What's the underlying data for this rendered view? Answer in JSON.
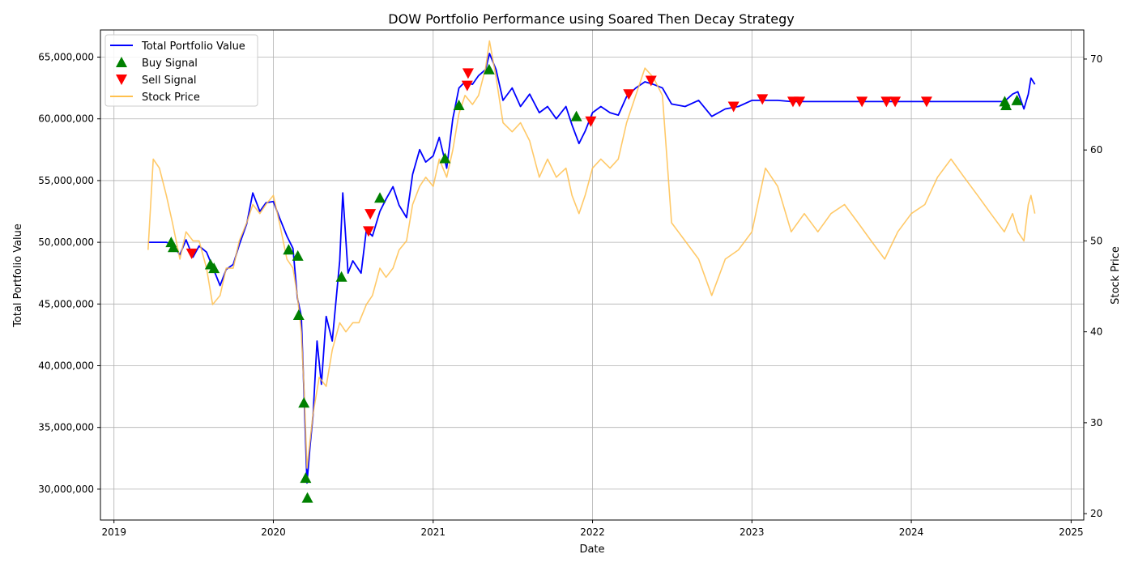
{
  "chart_data": {
    "type": "line",
    "title": "DOW Portfolio Performance using Soared Then Decay Strategy",
    "xlabel": "Date",
    "ylabel": "Total Portfolio Value",
    "ylabel_right": "Stock Price",
    "xlim": [
      "2018-12-01",
      "2025-01-30"
    ],
    "ylim": [
      27500000,
      67200000
    ],
    "ylim_right": [
      19.3,
      73.2
    ],
    "grid": true,
    "legend_position": "top-left",
    "x_ticks": [
      "2019",
      "2020",
      "2021",
      "2022",
      "2023",
      "2024",
      "2025"
    ],
    "y_ticks": [
      "30,000,000",
      "35,000,000",
      "40,000,000",
      "45,000,000",
      "50,000,000",
      "55,000,000",
      "60,000,000",
      "65,000,000"
    ],
    "y_ticks_right": [
      "20",
      "30",
      "40",
      "50",
      "60",
      "70"
    ],
    "legend": {
      "portfolio": "Total Portfolio Value",
      "buy": "Buy Signal",
      "sell": "Sell Signal",
      "price": "Stock Price"
    },
    "colors": {
      "portfolio": "#0000ff",
      "buy": "#008000",
      "sell": "#ff0000",
      "price": "#ffc04d"
    },
    "series": [
      {
        "name": "Total Portfolio Value",
        "axis": "left",
        "points": [
          [
            "2019-03-20",
            50000000
          ],
          [
            "2019-05-01",
            50000000
          ],
          [
            "2019-05-15",
            49800000
          ],
          [
            "2019-06-01",
            49000000
          ],
          [
            "2019-06-15",
            50200000
          ],
          [
            "2019-07-01",
            48800000
          ],
          [
            "2019-07-15",
            49700000
          ],
          [
            "2019-08-01",
            49200000
          ],
          [
            "2019-08-15",
            48000000
          ],
          [
            "2019-09-01",
            46500000
          ],
          [
            "2019-09-15",
            47800000
          ],
          [
            "2019-10-01",
            48200000
          ],
          [
            "2019-10-15",
            49800000
          ],
          [
            "2019-11-01",
            51500000
          ],
          [
            "2019-11-15",
            54000000
          ],
          [
            "2019-12-01",
            52500000
          ],
          [
            "2019-12-15",
            53200000
          ],
          [
            "2020-01-01",
            53300000
          ],
          [
            "2020-01-15",
            52000000
          ],
          [
            "2020-02-01",
            50500000
          ],
          [
            "2020-02-15",
            49500000
          ],
          [
            "2020-02-25",
            45500000
          ],
          [
            "2020-03-05",
            44000000
          ],
          [
            "2020-03-12",
            37000000
          ],
          [
            "2020-03-18",
            30500000
          ],
          [
            "2020-03-25",
            33500000
          ],
          [
            "2020-04-01",
            36000000
          ],
          [
            "2020-04-10",
            42000000
          ],
          [
            "2020-04-20",
            38500000
          ],
          [
            "2020-05-01",
            44000000
          ],
          [
            "2020-05-15",
            42000000
          ],
          [
            "2020-06-01",
            48500000
          ],
          [
            "2020-06-08",
            54000000
          ],
          [
            "2020-06-20",
            47500000
          ],
          [
            "2020-07-01",
            48500000
          ],
          [
            "2020-07-20",
            47500000
          ],
          [
            "2020-08-01",
            51000000
          ],
          [
            "2020-08-15",
            50500000
          ],
          [
            "2020-09-01",
            52500000
          ],
          [
            "2020-09-15",
            53500000
          ],
          [
            "2020-10-01",
            54500000
          ],
          [
            "2020-10-15",
            53000000
          ],
          [
            "2020-11-01",
            52000000
          ],
          [
            "2020-11-15",
            55500000
          ],
          [
            "2020-12-01",
            57500000
          ],
          [
            "2020-12-15",
            56500000
          ],
          [
            "2021-01-01",
            57000000
          ],
          [
            "2021-01-15",
            58500000
          ],
          [
            "2021-02-01",
            56000000
          ],
          [
            "2021-02-15",
            60000000
          ],
          [
            "2021-03-01",
            62500000
          ],
          [
            "2021-03-15",
            63000000
          ],
          [
            "2021-04-01",
            62800000
          ],
          [
            "2021-04-15",
            63500000
          ],
          [
            "2021-05-01",
            64000000
          ],
          [
            "2021-05-10",
            65300000
          ],
          [
            "2021-05-25",
            64000000
          ],
          [
            "2021-06-10",
            61500000
          ],
          [
            "2021-07-01",
            62500000
          ],
          [
            "2021-07-20",
            61000000
          ],
          [
            "2021-08-10",
            62000000
          ],
          [
            "2021-09-01",
            60500000
          ],
          [
            "2021-09-20",
            61000000
          ],
          [
            "2021-10-10",
            60000000
          ],
          [
            "2021-11-01",
            61000000
          ],
          [
            "2021-11-15",
            59500000
          ],
          [
            "2021-12-01",
            58000000
          ],
          [
            "2021-12-15",
            59000000
          ],
          [
            "2022-01-01",
            60500000
          ],
          [
            "2022-01-20",
            61000000
          ],
          [
            "2022-02-10",
            60500000
          ],
          [
            "2022-03-01",
            60300000
          ],
          [
            "2022-03-20",
            61800000
          ],
          [
            "2022-04-10",
            62500000
          ],
          [
            "2022-05-01",
            63000000
          ],
          [
            "2022-05-20",
            62800000
          ],
          [
            "2022-06-10",
            62500000
          ],
          [
            "2022-07-01",
            61200000
          ],
          [
            "2022-08-01",
            61000000
          ],
          [
            "2022-09-01",
            61500000
          ],
          [
            "2022-10-01",
            60200000
          ],
          [
            "2022-11-01",
            60800000
          ],
          [
            "2022-12-01",
            61000000
          ],
          [
            "2023-01-01",
            61500000
          ],
          [
            "2023-02-01",
            61500000
          ],
          [
            "2023-03-01",
            61500000
          ],
          [
            "2023-04-01",
            61400000
          ],
          [
            "2023-06-01",
            61400000
          ],
          [
            "2023-10-01",
            61400000
          ],
          [
            "2024-01-01",
            61400000
          ],
          [
            "2024-04-01",
            61400000
          ],
          [
            "2024-07-01",
            61400000
          ],
          [
            "2024-08-01",
            61400000
          ],
          [
            "2024-08-20",
            62000000
          ],
          [
            "2024-09-01",
            62200000
          ],
          [
            "2024-09-15",
            60800000
          ],
          [
            "2024-09-25",
            62000000
          ],
          [
            "2024-10-01",
            63300000
          ],
          [
            "2024-10-10",
            62800000
          ]
        ]
      },
      {
        "name": "Stock Price",
        "axis": "right",
        "points": [
          [
            "2019-03-20",
            49
          ],
          [
            "2019-04-01",
            59
          ],
          [
            "2019-04-15",
            58
          ],
          [
            "2019-05-01",
            55
          ],
          [
            "2019-05-15",
            52
          ],
          [
            "2019-06-01",
            48
          ],
          [
            "2019-06-15",
            51
          ],
          [
            "2019-07-01",
            50
          ],
          [
            "2019-07-15",
            50
          ],
          [
            "2019-08-01",
            47
          ],
          [
            "2019-08-15",
            43
          ],
          [
            "2019-09-01",
            44
          ],
          [
            "2019-09-15",
            47
          ],
          [
            "2019-10-01",
            47
          ],
          [
            "2019-10-15",
            50
          ],
          [
            "2019-11-01",
            52
          ],
          [
            "2019-11-15",
            54
          ],
          [
            "2019-12-01",
            53
          ],
          [
            "2019-12-15",
            54
          ],
          [
            "2020-01-01",
            55
          ],
          [
            "2020-01-15",
            52
          ],
          [
            "2020-02-01",
            48
          ],
          [
            "2020-02-15",
            47
          ],
          [
            "2020-02-25",
            44
          ],
          [
            "2020-03-05",
            40
          ],
          [
            "2020-03-12",
            33
          ],
          [
            "2020-03-18",
            25
          ],
          [
            "2020-03-25",
            28
          ],
          [
            "2020-04-01",
            31
          ],
          [
            "2020-04-15",
            35
          ],
          [
            "2020-05-01",
            34
          ],
          [
            "2020-05-15",
            38
          ],
          [
            "2020-06-01",
            41
          ],
          [
            "2020-06-15",
            40
          ],
          [
            "2020-07-01",
            41
          ],
          [
            "2020-07-15",
            41
          ],
          [
            "2020-08-01",
            43
          ],
          [
            "2020-08-15",
            44
          ],
          [
            "2020-09-01",
            47
          ],
          [
            "2020-09-15",
            46
          ],
          [
            "2020-10-01",
            47
          ],
          [
            "2020-10-15",
            49
          ],
          [
            "2020-11-01",
            50
          ],
          [
            "2020-11-15",
            54
          ],
          [
            "2020-12-01",
            56
          ],
          [
            "2020-12-15",
            57
          ],
          [
            "2021-01-01",
            56
          ],
          [
            "2021-01-15",
            59
          ],
          [
            "2021-02-01",
            57
          ],
          [
            "2021-02-15",
            60
          ],
          [
            "2021-03-01",
            64
          ],
          [
            "2021-03-15",
            66
          ],
          [
            "2021-04-01",
            65
          ],
          [
            "2021-04-15",
            66
          ],
          [
            "2021-05-01",
            69
          ],
          [
            "2021-05-10",
            72
          ],
          [
            "2021-05-25",
            68
          ],
          [
            "2021-06-10",
            63
          ],
          [
            "2021-07-01",
            62
          ],
          [
            "2021-07-20",
            63
          ],
          [
            "2021-08-10",
            61
          ],
          [
            "2021-09-01",
            57
          ],
          [
            "2021-09-20",
            59
          ],
          [
            "2021-10-10",
            57
          ],
          [
            "2021-11-01",
            58
          ],
          [
            "2021-11-15",
            55
          ],
          [
            "2021-12-01",
            53
          ],
          [
            "2021-12-15",
            55
          ],
          [
            "2022-01-01",
            58
          ],
          [
            "2022-01-20",
            59
          ],
          [
            "2022-02-10",
            58
          ],
          [
            "2022-03-01",
            59
          ],
          [
            "2022-03-20",
            63
          ],
          [
            "2022-04-10",
            66
          ],
          [
            "2022-05-01",
            69
          ],
          [
            "2022-05-20",
            68
          ],
          [
            "2022-06-10",
            66
          ],
          [
            "2022-07-01",
            52
          ],
          [
            "2022-08-01",
            50
          ],
          [
            "2022-09-01",
            48
          ],
          [
            "2022-10-01",
            44
          ],
          [
            "2022-11-01",
            48
          ],
          [
            "2022-12-01",
            49
          ],
          [
            "2023-01-01",
            51
          ],
          [
            "2023-02-01",
            58
          ],
          [
            "2023-03-01",
            56
          ],
          [
            "2023-04-01",
            51
          ],
          [
            "2023-05-01",
            53
          ],
          [
            "2023-06-01",
            51
          ],
          [
            "2023-07-01",
            53
          ],
          [
            "2023-08-01",
            54
          ],
          [
            "2023-09-01",
            52
          ],
          [
            "2023-10-01",
            50
          ],
          [
            "2023-11-01",
            48
          ],
          [
            "2023-12-01",
            51
          ],
          [
            "2024-01-01",
            53
          ],
          [
            "2024-02-01",
            54
          ],
          [
            "2024-03-01",
            57
          ],
          [
            "2024-04-01",
            59
          ],
          [
            "2024-05-01",
            57
          ],
          [
            "2024-06-01",
            55
          ],
          [
            "2024-07-01",
            53
          ],
          [
            "2024-08-01",
            51
          ],
          [
            "2024-08-20",
            53
          ],
          [
            "2024-09-01",
            51
          ],
          [
            "2024-09-15",
            50
          ],
          [
            "2024-09-25",
            54
          ],
          [
            "2024-10-01",
            55
          ],
          [
            "2024-10-10",
            53
          ]
        ]
      }
    ],
    "buy_signals": [
      [
        "2019-05-12",
        50000000
      ],
      [
        "2019-05-17",
        49600000
      ],
      [
        "2019-08-10",
        48200000
      ],
      [
        "2019-08-18",
        47900000
      ],
      [
        "2020-02-05",
        49400000
      ],
      [
        "2020-02-26",
        48900000
      ],
      [
        "2020-02-28",
        44100000
      ],
      [
        "2020-03-11",
        37000000
      ],
      [
        "2020-03-15",
        30900000
      ],
      [
        "2020-03-19",
        29300000
      ],
      [
        "2020-06-05",
        47200000
      ],
      [
        "2020-09-01",
        53600000
      ],
      [
        "2021-01-28",
        56800000
      ],
      [
        "2021-03-01",
        61100000
      ],
      [
        "2021-05-09",
        64000000
      ],
      [
        "2021-11-25",
        60200000
      ],
      [
        "2024-08-02",
        61400000
      ],
      [
        "2024-08-05",
        61100000
      ],
      [
        "2024-08-30",
        61500000
      ]
    ],
    "sell_signals": [
      [
        "2019-06-28",
        49100000
      ],
      [
        "2020-08-10",
        52300000
      ],
      [
        "2020-08-06",
        50900000
      ],
      [
        "2021-03-20",
        62700000
      ],
      [
        "2021-03-22",
        63700000
      ],
      [
        "2021-12-28",
        59800000
      ],
      [
        "2022-03-25",
        62000000
      ],
      [
        "2022-05-15",
        63100000
      ],
      [
        "2022-11-20",
        61000000
      ],
      [
        "2023-01-25",
        61600000
      ],
      [
        "2023-04-05",
        61400000
      ],
      [
        "2023-04-20",
        61400000
      ],
      [
        "2023-09-10",
        61400000
      ],
      [
        "2023-11-05",
        61400000
      ],
      [
        "2023-11-25",
        61400000
      ],
      [
        "2024-02-05",
        61400000
      ]
    ]
  }
}
